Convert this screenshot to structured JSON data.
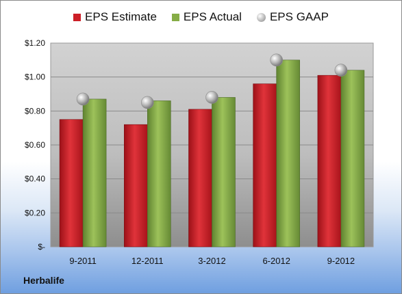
{
  "chart_data": {
    "type": "bar",
    "categories": [
      "9-2011",
      "12-2011",
      "3-2012",
      "6-2012",
      "9-2012"
    ],
    "series": [
      {
        "name": "EPS Estimate",
        "values": [
          0.75,
          0.72,
          0.81,
          0.96,
          1.01
        ],
        "color": "#cc1f27"
      },
      {
        "name": "EPS Actual",
        "values": [
          0.87,
          0.86,
          0.88,
          1.1,
          1.04
        ],
        "color": "#86ad46"
      },
      {
        "name": "EPS GAAP",
        "values": [
          0.87,
          0.85,
          0.88,
          1.1,
          1.04
        ],
        "color": "#a8a8a8",
        "marker": "circle"
      }
    ],
    "yticks": [
      {
        "value": 0,
        "label": "$-"
      },
      {
        "value": 0.2,
        "label": "$0.20"
      },
      {
        "value": 0.4,
        "label": "$0.40"
      },
      {
        "value": 0.6,
        "label": "$0.60"
      },
      {
        "value": 0.8,
        "label": "$0.80"
      },
      {
        "value": 1.0,
        "label": "$1.00"
      },
      {
        "value": 1.2,
        "label": "$1.20"
      }
    ],
    "ylim": [
      0,
      1.2
    ],
    "grid": true,
    "legend": "top",
    "footer": "Herbalife"
  }
}
